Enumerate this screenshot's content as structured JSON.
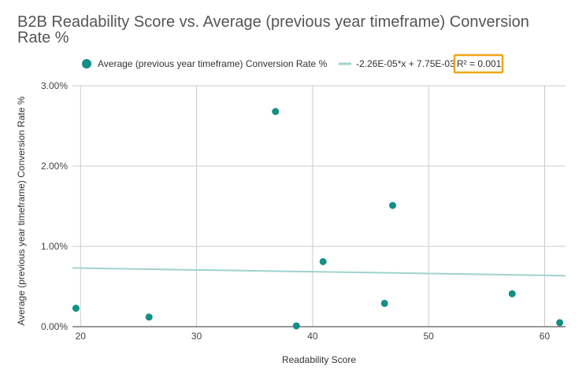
{
  "chart_data": {
    "type": "scatter",
    "title": "B2B Readability Score vs. Average (previous year timeframe) Conversion Rate %",
    "xlabel": "Readability Score",
    "ylabel": "Average (previous year timeframe) Conversion Rate %",
    "xlim": [
      19.3,
      61.8
    ],
    "ylim": [
      0,
      3
    ],
    "x_ticks": [
      20,
      30,
      40,
      50,
      60
    ],
    "x_tick_labels": [
      "20",
      "30",
      "40",
      "50",
      "60"
    ],
    "y_ticks": [
      0,
      1,
      2,
      3
    ],
    "y_tick_labels": [
      "0.00%",
      "1.00%",
      "2.00%",
      "3.00%"
    ],
    "grid": true,
    "legend_position": "top",
    "series": [
      {
        "name": "Average (previous year timeframe) Conversion Rate %",
        "color": "#148f85",
        "x": [
          19.6,
          25.9,
          36.8,
          38.6,
          40.9,
          46.2,
          46.9,
          57.2,
          61.3
        ],
        "y": [
          0.23,
          0.12,
          2.68,
          0.01,
          0.81,
          0.29,
          1.51,
          0.41,
          0.05
        ]
      }
    ],
    "trendline": {
      "label": "-2.26E-05*x + 7.75E-03",
      "r2_label": "R² = 0.001",
      "slope": -0.00226,
      "intercept": 0.775,
      "color": "#9fd3cd"
    },
    "highlight_color": "#f0a616"
  }
}
